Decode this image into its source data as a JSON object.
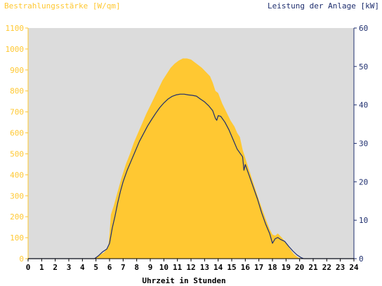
{
  "chart_data": {
    "type": "area",
    "left_axis_title": "Bestrahlungsstärke [W/qm]",
    "right_axis_title": "Leistung der Anlage [kW]",
    "xlabel": "Uhrzeit in Stunden",
    "xlim": [
      0,
      24
    ],
    "x_ticks": [
      "0",
      "1",
      "2",
      "3",
      "4",
      "5",
      "6",
      "7",
      "8",
      "9",
      "10",
      "11",
      "12",
      "13",
      "14",
      "15",
      "16",
      "17",
      "18",
      "19",
      "20",
      "21",
      "22",
      "23",
      "24"
    ],
    "ylim_left": [
      0,
      1100
    ],
    "y_ticks_left": [
      "0",
      "100",
      "200",
      "300",
      "400",
      "500",
      "600",
      "700",
      "800",
      "900",
      "1000",
      "1100"
    ],
    "ylim_right": [
      0,
      60
    ],
    "y_ticks_right": [
      "0",
      "10",
      "20",
      "30",
      "40",
      "50",
      "60"
    ],
    "grid": false,
    "colors": {
      "plot_background": "#dcdcdc",
      "irradiance": "#ffc832",
      "power": "#1e2e6e",
      "left_axis": "#ffc832",
      "right_axis": "#1e2e6e"
    },
    "series": [
      {
        "name": "Bestrahlungsstärke [W/qm]",
        "axis": "left",
        "style": "area",
        "x": [
          0,
          4.9,
          5.2,
          5.6,
          5.9,
          6.0,
          6.1,
          6.3,
          6.6,
          6.9,
          7.2,
          7.5,
          7.8,
          8.1,
          8.4,
          8.7,
          9.0,
          9.3,
          9.6,
          9.9,
          10.2,
          10.5,
          10.8,
          11.1,
          11.4,
          11.7,
          12.0,
          12.2,
          12.5,
          12.8,
          13.1,
          13.4,
          13.6,
          13.8,
          14.0,
          14.3,
          14.6,
          14.9,
          15.2,
          15.4,
          15.6,
          15.8,
          16.0,
          16.3,
          16.6,
          16.9,
          17.2,
          17.5,
          17.8,
          18.0,
          18.2,
          18.4,
          18.7,
          19.0,
          19.3,
          19.6,
          19.9,
          20.2,
          20.5,
          24
        ],
        "values": [
          0,
          0,
          15,
          30,
          55,
          120,
          210,
          250,
          320,
          390,
          450,
          500,
          555,
          600,
          645,
          690,
          730,
          770,
          810,
          850,
          880,
          910,
          930,
          945,
          955,
          955,
          950,
          940,
          925,
          910,
          890,
          870,
          840,
          800,
          790,
          740,
          700,
          660,
          630,
          600,
          580,
          520,
          480,
          420,
          360,
          300,
          245,
          190,
          140,
          115,
          110,
          120,
          100,
          75,
          45,
          20,
          5,
          0,
          0,
          0
        ]
      },
      {
        "name": "Leistung der Anlage [kW]",
        "axis": "right",
        "style": "line",
        "x": [
          0,
          4.9,
          5.2,
          5.5,
          5.8,
          6.0,
          6.2,
          6.4,
          6.6,
          6.8,
          7.0,
          7.3,
          7.6,
          7.9,
          8.2,
          8.5,
          8.8,
          9.1,
          9.4,
          9.7,
          10.0,
          10.3,
          10.6,
          10.9,
          11.2,
          11.5,
          11.8,
          12.1,
          12.4,
          12.7,
          13.0,
          13.3,
          13.6,
          13.8,
          13.9,
          14.0,
          14.2,
          14.5,
          14.8,
          15.1,
          15.4,
          15.6,
          15.8,
          15.9,
          16.0,
          16.3,
          16.6,
          16.9,
          17.2,
          17.5,
          17.8,
          18.0,
          18.2,
          18.4,
          18.6,
          18.9,
          19.2,
          19.5,
          19.8,
          20.1,
          20.3,
          24
        ],
        "values": [
          0,
          0,
          0.8,
          1.8,
          2.5,
          4,
          8,
          11,
          14.5,
          17.5,
          20,
          23,
          25.5,
          28,
          30.5,
          32.5,
          34.5,
          36.2,
          37.8,
          39.3,
          40.5,
          41.5,
          42.2,
          42.6,
          42.8,
          42.8,
          42.6,
          42.5,
          42.3,
          41.5,
          40.8,
          39.8,
          38.5,
          36.5,
          36,
          37.2,
          37,
          35.5,
          33.5,
          31,
          28.5,
          27.5,
          26.5,
          23,
          24.5,
          21.5,
          18.5,
          15.5,
          12,
          9,
          6.5,
          4,
          5.2,
          5.5,
          5,
          4.5,
          3.2,
          2,
          1,
          0.3,
          0,
          0
        ]
      }
    ]
  }
}
